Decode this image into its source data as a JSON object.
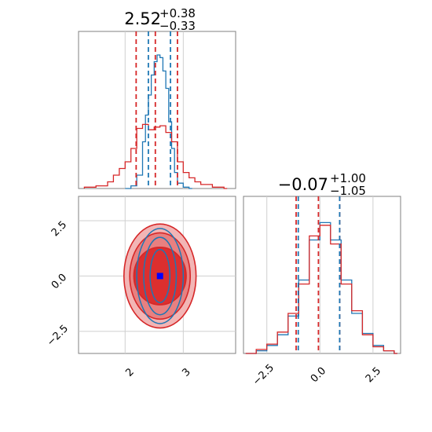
{
  "chart_data": [
    {
      "type": "histogram",
      "panel": "marginal-x",
      "title": {
        "main": "2.52",
        "sup": "+0.38",
        "sub": "−0.33"
      },
      "xlim": [
        1.2,
        3.9
      ],
      "grid": true,
      "series": [
        {
          "color": "#1f77b4",
          "style": "step",
          "x": [
            2.0,
            2.1,
            2.2,
            2.3,
            2.35,
            2.4,
            2.45,
            2.5,
            2.55,
            2.6,
            2.65,
            2.7,
            2.75,
            2.8,
            2.85,
            2.9,
            3.0,
            3.1
          ],
          "y": [
            0.0,
            0.02,
            0.1,
            0.35,
            0.55,
            0.7,
            0.85,
            0.95,
            1.0,
            0.98,
            0.88,
            0.75,
            0.5,
            0.3,
            0.12,
            0.04,
            0.01,
            0.0
          ]
        },
        {
          "color": "#d62728",
          "style": "step",
          "x": [
            1.3,
            1.5,
            1.7,
            1.8,
            1.9,
            2.0,
            2.1,
            2.2,
            2.3,
            2.4,
            2.5,
            2.6,
            2.7,
            2.8,
            2.9,
            3.0,
            3.1,
            3.2,
            3.3,
            3.5,
            3.7
          ],
          "y": [
            0.01,
            0.02,
            0.05,
            0.1,
            0.15,
            0.2,
            0.3,
            0.45,
            0.48,
            0.44,
            0.46,
            0.47,
            0.42,
            0.35,
            0.2,
            0.12,
            0.08,
            0.05,
            0.03,
            0.01,
            0.0
          ]
        }
      ],
      "quantile_lines": [
        {
          "color": "#d62728",
          "x": [
            2.19,
            2.52,
            2.9
          ]
        },
        {
          "color": "#1f77b4",
          "x": [
            2.4,
            2.78
          ]
        }
      ]
    },
    {
      "type": "contour",
      "panel": "joint",
      "xlim": [
        1.2,
        3.9
      ],
      "ylim": [
        -3.5,
        3.6
      ],
      "xticks": [
        "2",
        "3"
      ],
      "yticks": [
        "−2.5",
        "0.0",
        "2.5"
      ],
      "grid": true,
      "marker": {
        "x": 2.6,
        "y": 0.0,
        "color": "#0000ff"
      },
      "series": [
        {
          "color": "#d62728",
          "center": [
            2.6,
            0.0
          ],
          "filled": true,
          "levels": [
            {
              "rx": 0.62,
              "ry": 2.35,
              "fill": "#f2b5b5"
            },
            {
              "rx": 0.52,
              "ry": 1.95,
              "fill": "#e88080"
            },
            {
              "rx": 0.45,
              "ry": 1.3,
              "fill": "#dc2f2f"
            }
          ]
        },
        {
          "color": "#1f77b4",
          "center": [
            2.6,
            0.0
          ],
          "filled": false,
          "levels": [
            {
              "rx": 0.4,
              "ry": 2.15
            },
            {
              "rx": 0.28,
              "ry": 1.75
            },
            {
              "rx": 0.17,
              "ry": 1.2
            }
          ]
        }
      ]
    },
    {
      "type": "histogram",
      "panel": "marginal-y",
      "title": {
        "main": "−0.07",
        "sup": "+1.00",
        "sub": "−1.05"
      },
      "xlim": [
        -3.6,
        3.8
      ],
      "xticks": [
        "−2.5",
        "0.0",
        "2.5"
      ],
      "grid": true,
      "series": [
        {
          "color": "#1f77b4",
          "style": "step",
          "x": [
            -3.5,
            -3.0,
            -2.5,
            -2.0,
            -1.5,
            -1.0,
            -0.5,
            0.0,
            0.5,
            1.0,
            1.5,
            2.0,
            2.5,
            3.0,
            3.5
          ],
          "y": [
            0.0,
            0.02,
            0.06,
            0.14,
            0.28,
            0.55,
            0.85,
            0.98,
            0.85,
            0.55,
            0.3,
            0.15,
            0.06,
            0.02,
            0.0
          ]
        },
        {
          "color": "#d62728",
          "style": "step",
          "x": [
            -3.5,
            -3.0,
            -2.5,
            -2.0,
            -1.5,
            -1.0,
            -0.5,
            0.0,
            0.5,
            1.0,
            1.5,
            2.0,
            2.5,
            3.0,
            3.5
          ],
          "y": [
            0.0,
            0.03,
            0.07,
            0.16,
            0.3,
            0.52,
            0.88,
            0.96,
            0.82,
            0.52,
            0.32,
            0.14,
            0.05,
            0.02,
            0.0
          ]
        }
      ],
      "quantile_lines": [
        {
          "color": "#d62728",
          "x": [
            -1.12,
            -0.07,
            0.93
          ]
        },
        {
          "color": "#1f77b4",
          "x": [
            -1.02,
            0.93
          ]
        }
      ]
    }
  ]
}
